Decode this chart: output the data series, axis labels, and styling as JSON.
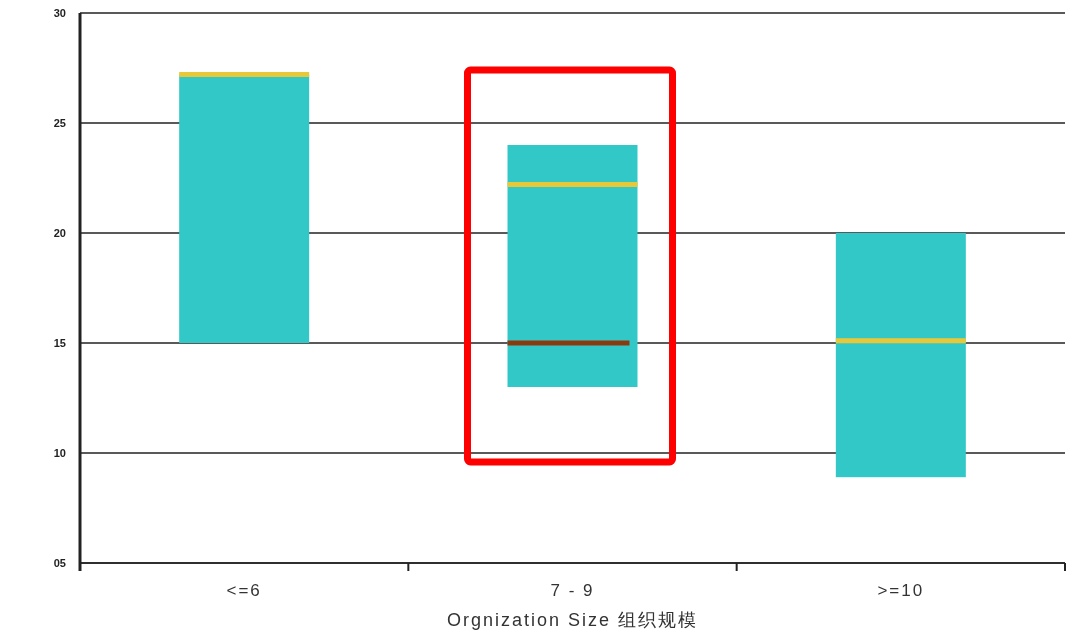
{
  "chart_data": {
    "type": "box",
    "xlabel": "Orgnization Size  组织规模",
    "categories": [
      "<=6",
      "7 - 9",
      ">=10"
    ],
    "series": [
      {
        "color": "#33c8c8",
        "boxes": [
          {
            "low": 15,
            "q1": 15,
            "median": 27.2,
            "q3": 27.2,
            "high": 27.2
          },
          {
            "low": 13,
            "q1": 13,
            "median": 22.2,
            "q3": 24,
            "high": 24,
            "mean": 15
          },
          {
            "low": 8.9,
            "q1": 8.9,
            "median": 15.1,
            "q3": 20,
            "high": 20
          }
        ]
      }
    ],
    "ylim": [
      5,
      30
    ],
    "yticks": [
      {
        "value": 5,
        "label": "05"
      },
      10,
      15,
      20,
      25,
      30
    ],
    "grid": "y"
  }
}
